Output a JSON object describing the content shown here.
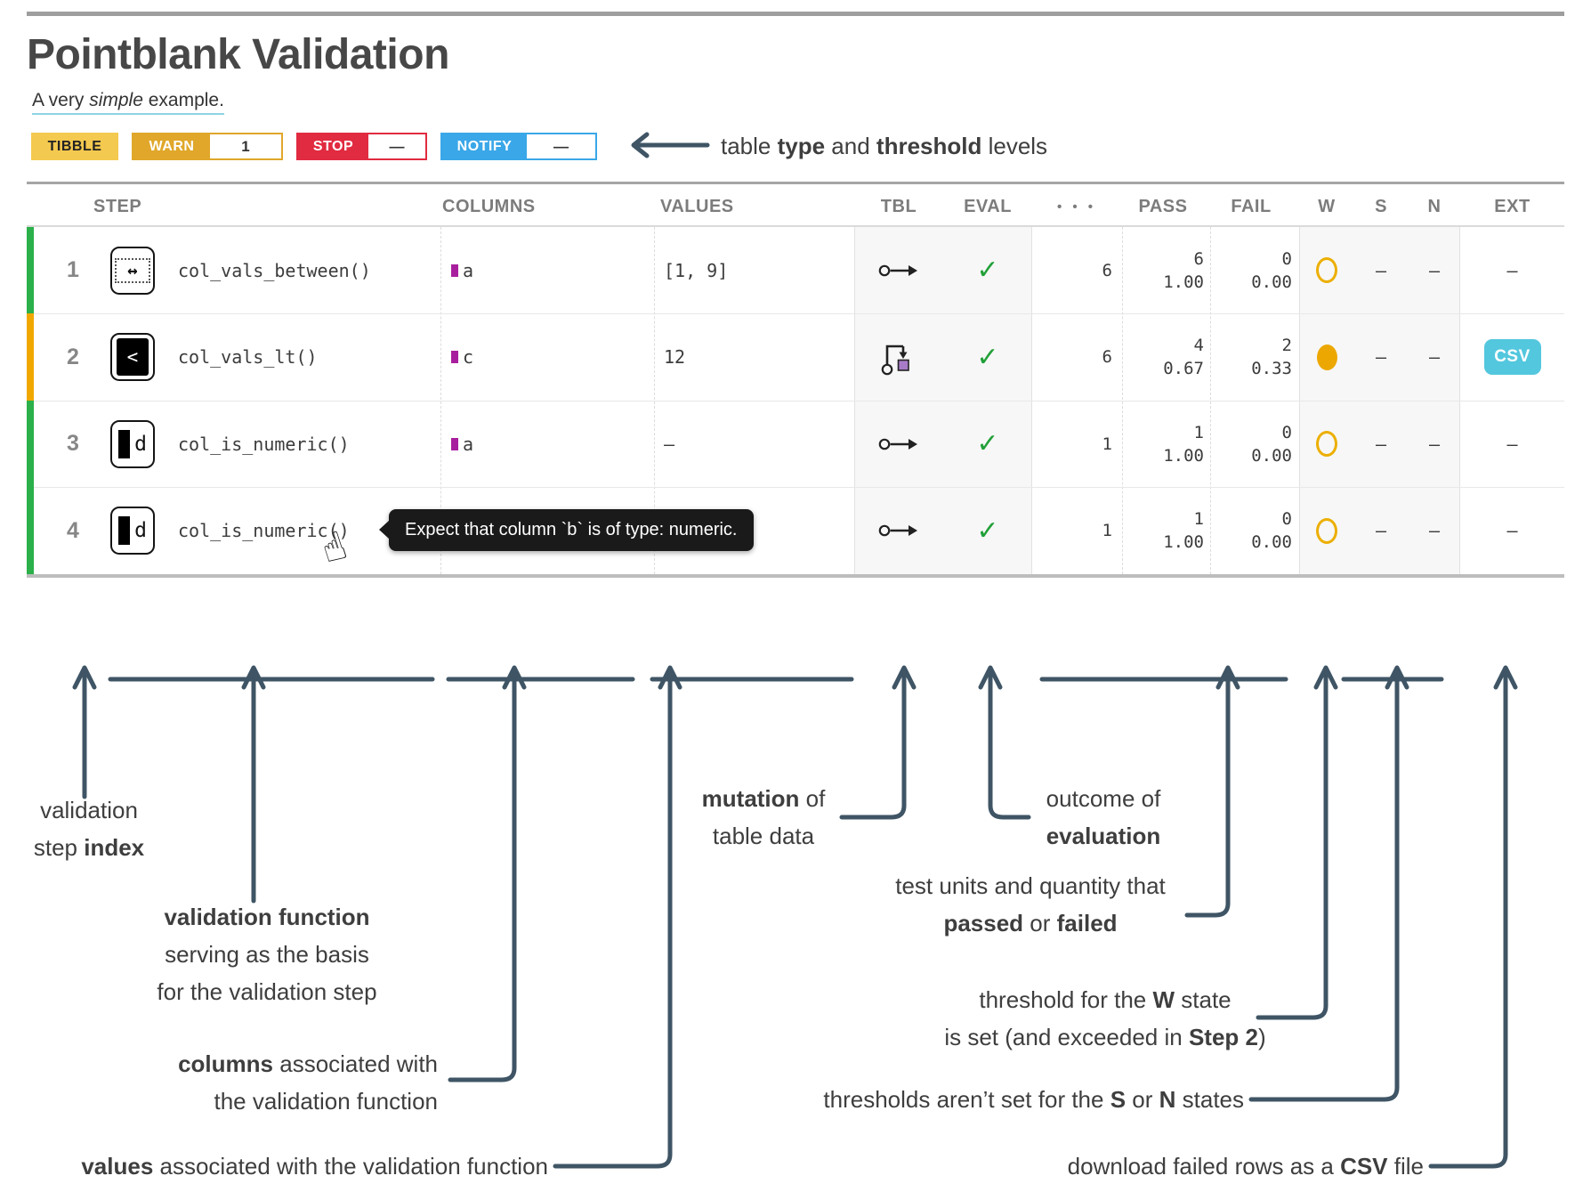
{
  "title": "Pointblank Validation",
  "subtitle": {
    "pre": "A very ",
    "em": "simple",
    "post": " example."
  },
  "badges": {
    "type_label": "TIBBLE",
    "warn": {
      "label": "WARN",
      "value": "1"
    },
    "stop": {
      "label": "STOP",
      "value": "—"
    },
    "notify": {
      "label": "NOTIFY",
      "value": "—"
    }
  },
  "table": {
    "headers": {
      "step": "STEP",
      "columns": "COLUMNS",
      "values": "VALUES",
      "tbl": "TBL",
      "eval": "EVAL",
      "dots": "• • •",
      "pass": "PASS",
      "fail": "FAIL",
      "w": "W",
      "s": "S",
      "n": "N",
      "ext": "EXT"
    },
    "check": "✓",
    "icon_glyphs": {
      "between": "↔",
      "lt": "<",
      "is_type": "d"
    },
    "rows": [
      {
        "index": "1",
        "fn": "col_vals_between()",
        "column": "a",
        "values": "[1, 9]",
        "tbl": "unchanged",
        "eval": "pass",
        "units": "6",
        "pass_n": "6",
        "pass_f": "1.00",
        "fail_n": "0",
        "fail_f": "0.00",
        "w": "open",
        "s": "—",
        "n": "—",
        "ext": "—"
      },
      {
        "index": "2",
        "fn": "col_vals_lt()",
        "column": "c",
        "values": "12",
        "tbl": "mutated",
        "eval": "pass",
        "units": "6",
        "pass_n": "4",
        "pass_f": "0.67",
        "fail_n": "2",
        "fail_f": "0.33",
        "w": "filled",
        "s": "—",
        "n": "—",
        "ext_label": "CSV"
      },
      {
        "index": "3",
        "fn": "col_is_numeric()",
        "column": "a",
        "values": "—",
        "tbl": "unchanged",
        "eval": "pass",
        "units": "1",
        "pass_n": "1",
        "pass_f": "1.00",
        "fail_n": "0",
        "fail_f": "0.00",
        "w": "open",
        "s": "—",
        "n": "—",
        "ext": "—"
      },
      {
        "index": "4",
        "fn": "col_is_numeric()",
        "tbl": "unchanged",
        "eval": "pass",
        "units": "1",
        "pass_n": "1",
        "pass_f": "1.00",
        "fail_n": "0",
        "fail_f": "0.00",
        "w": "open",
        "s": "—",
        "n": "—",
        "ext": "—"
      }
    ]
  },
  "tooltip": "Expect that column `b` is of type: numeric.",
  "annotations": [
    {
      "id": "table-type-threshold",
      "lines": [
        [
          {
            "t": "table "
          },
          {
            "t": "type",
            "b": true
          },
          {
            "t": " and "
          },
          {
            "t": "threshold",
            "b": true
          },
          {
            "t": " levels"
          }
        ]
      ]
    },
    {
      "id": "step-index",
      "lines": [
        [
          {
            "t": "validation"
          }
        ],
        [
          {
            "t": "step "
          },
          {
            "t": "index",
            "b": true
          }
        ]
      ]
    },
    {
      "id": "validation-fn",
      "lines": [
        [
          {
            "t": "validation function",
            "b": true
          }
        ],
        [
          {
            "t": "serving as the basis"
          }
        ],
        [
          {
            "t": "for the validation step"
          }
        ]
      ]
    },
    {
      "id": "columns",
      "lines": [
        [
          {
            "t": "columns",
            "b": true
          },
          {
            "t": " associated with"
          }
        ],
        [
          {
            "t": "the validation function"
          }
        ]
      ]
    },
    {
      "id": "values",
      "lines": [
        [
          {
            "t": "values",
            "b": true
          },
          {
            "t": " associated with the validation function"
          }
        ]
      ]
    },
    {
      "id": "mutation",
      "lines": [
        [
          {
            "t": "mutation",
            "b": true
          },
          {
            "t": " of"
          }
        ],
        [
          {
            "t": "table data"
          }
        ]
      ]
    },
    {
      "id": "outcome",
      "lines": [
        [
          {
            "t": "outcome of"
          }
        ],
        [
          {
            "t": "evaluation",
            "b": true
          }
        ]
      ]
    },
    {
      "id": "test-units",
      "lines": [
        [
          {
            "t": "test units and quantity that"
          }
        ],
        [
          {
            "t": "passed",
            "b": true
          },
          {
            "t": " or "
          },
          {
            "t": "failed",
            "b": true
          }
        ]
      ]
    },
    {
      "id": "w-threshold",
      "lines": [
        [
          {
            "t": "threshold for the "
          },
          {
            "t": "W",
            "b": true
          },
          {
            "t": " state"
          }
        ],
        [
          {
            "t": "is set (and exceeded in "
          },
          {
            "t": "Step 2",
            "b": true
          },
          {
            "t": ")"
          }
        ]
      ]
    },
    {
      "id": "sn-thresholds",
      "lines": [
        [
          {
            "t": "thresholds aren’t set for the "
          },
          {
            "t": "S",
            "b": true
          },
          {
            "t": " or "
          },
          {
            "t": "N",
            "b": true
          },
          {
            "t": " states"
          }
        ]
      ]
    },
    {
      "id": "csv-download",
      "lines": [
        [
          {
            "t": "download failed rows as a "
          },
          {
            "t": "CSV",
            "b": true
          },
          {
            "t": " file"
          }
        ]
      ]
    }
  ],
  "colors": {
    "status_green": "#2BB04A",
    "status_amber": "#F0A800",
    "badge_yellow": "#F4C94F",
    "badge_amber": "#E0A72A",
    "badge_red": "#E12B40",
    "badge_blue": "#3AA7E8",
    "csv_cyan": "#53C7DE",
    "column_purple": "#A81F9E",
    "check_green": "#21A038",
    "w_circle_amber": "#ECAF01",
    "annotation_slate": "#3F5565",
    "tooltip_black": "#1A1A1A"
  }
}
